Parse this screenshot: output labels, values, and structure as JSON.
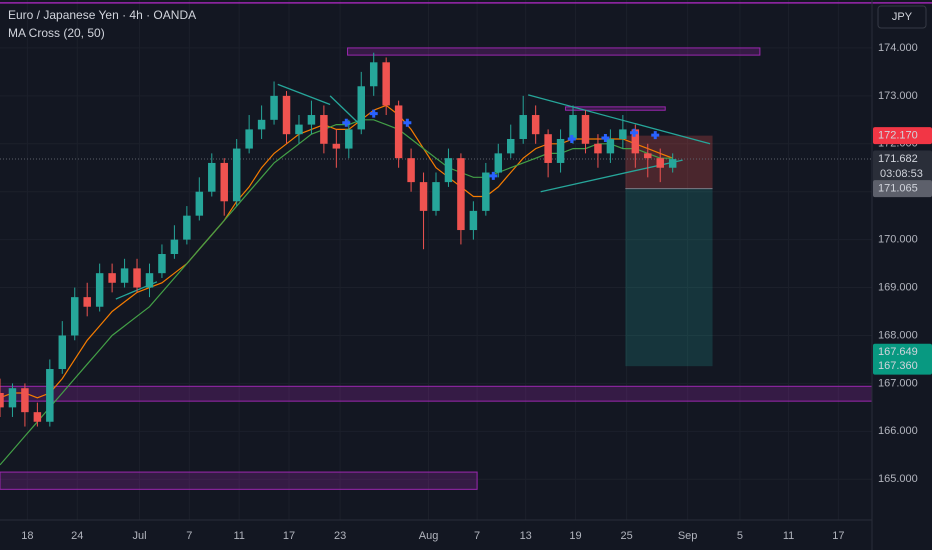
{
  "header": {
    "symbol_title": "Euro / Japanese Yen · 4h · OANDA",
    "indicator": "MA Cross (20, 50)",
    "currency_button": "JPY"
  },
  "chart_data": {
    "type": "candlestick",
    "colors": {
      "background": "#131722",
      "up": "#26a69a",
      "down": "#ef5350",
      "grid": "#1c202b",
      "zone": "#9c27b0",
      "trendline": "#26a69a",
      "cross": "#2962ff"
    },
    "xlim": [
      0,
      70
    ],
    "ylim": [
      164.15,
      175.0
    ],
    "xticks": [
      {
        "value": 2.2,
        "label": "18"
      },
      {
        "value": 6.2,
        "label": "24"
      },
      {
        "value": 11.2,
        "label": "Jul"
      },
      {
        "value": 15.2,
        "label": "7"
      },
      {
        "value": 19.2,
        "label": "11"
      },
      {
        "value": 23.2,
        "label": "17"
      },
      {
        "value": 27.3,
        "label": "23"
      },
      {
        "value": 34.4,
        "label": "Aug"
      },
      {
        "value": 38.3,
        "label": "7"
      },
      {
        "value": 42.2,
        "label": "13"
      },
      {
        "value": 46.2,
        "label": "19"
      },
      {
        "value": 50.3,
        "label": "25"
      },
      {
        "value": 55.2,
        "label": "Sep"
      },
      {
        "value": 59.4,
        "label": "5"
      },
      {
        "value": 63.3,
        "label": "11"
      },
      {
        "value": 67.3,
        "label": "17"
      }
    ],
    "yticks": [
      {
        "value": 165,
        "label": "165.000"
      },
      {
        "value": 166,
        "label": "166.000"
      },
      {
        "value": 167,
        "label": "167.000"
      },
      {
        "value": 168,
        "label": "168.000"
      },
      {
        "value": 169,
        "label": "169.000"
      },
      {
        "value": 170,
        "label": "170.000"
      },
      {
        "value": 171,
        "label": "171.000"
      },
      {
        "value": 172,
        "label": "172.000"
      },
      {
        "value": 173,
        "label": "173.000"
      },
      {
        "value": 174,
        "label": "174.000"
      }
    ],
    "grid": true,
    "x": [
      0,
      1,
      2,
      3,
      4,
      5,
      6,
      7,
      8,
      9,
      10,
      11,
      12,
      13,
      14,
      15,
      16,
      17,
      18,
      19,
      20,
      21,
      22,
      23,
      24,
      25,
      26,
      27,
      28,
      29,
      30,
      31,
      32,
      33,
      34,
      35,
      36,
      37,
      38,
      39,
      40,
      41,
      42,
      43,
      44,
      45,
      46,
      47,
      48,
      49,
      50,
      51,
      52,
      53,
      54
    ],
    "open": [
      166.8,
      166.5,
      166.9,
      166.4,
      166.2,
      167.3,
      168.0,
      168.8,
      168.6,
      169.3,
      169.1,
      169.4,
      169.0,
      169.3,
      169.7,
      170.0,
      170.5,
      171.0,
      171.6,
      170.8,
      171.9,
      172.3,
      172.5,
      173.0,
      172.2,
      172.4,
      172.6,
      172.0,
      171.9,
      172.3,
      173.2,
      173.7,
      172.8,
      171.7,
      171.2,
      170.6,
      171.2,
      171.7,
      170.2,
      170.6,
      171.4,
      171.8,
      172.1,
      172.6,
      172.2,
      171.6,
      172.1,
      172.6,
      172.0,
      171.8,
      172.1,
      172.3,
      171.8,
      171.7,
      171.5
    ],
    "high": [
      167.1,
      167.0,
      167.0,
      166.6,
      167.5,
      168.3,
      169.0,
      169.1,
      169.5,
      169.5,
      169.6,
      169.6,
      169.5,
      169.9,
      170.3,
      170.7,
      171.3,
      171.8,
      171.7,
      172.1,
      172.6,
      172.8,
      173.3,
      173.1,
      172.6,
      172.9,
      172.8,
      172.3,
      172.5,
      173.5,
      173.9,
      173.8,
      172.9,
      171.9,
      171.4,
      171.4,
      171.9,
      171.8,
      170.8,
      171.6,
      172.0,
      172.4,
      173.0,
      172.8,
      172.3,
      172.3,
      172.8,
      172.7,
      172.2,
      172.3,
      172.6,
      172.4,
      172.0,
      171.9,
      171.8
    ],
    "low": [
      166.3,
      166.3,
      166.1,
      166.1,
      166.1,
      167.2,
      167.9,
      168.4,
      168.5,
      168.9,
      169.0,
      168.9,
      168.8,
      169.2,
      169.6,
      169.9,
      170.4,
      170.9,
      170.5,
      170.7,
      171.8,
      172.1,
      172.4,
      172.0,
      172.0,
      172.2,
      171.8,
      171.5,
      171.7,
      172.2,
      173.0,
      172.6,
      171.5,
      171.0,
      169.8,
      170.5,
      171.1,
      169.9,
      170.0,
      170.5,
      171.3,
      171.7,
      172.0,
      172.0,
      171.3,
      171.4,
      172.0,
      171.8,
      171.5,
      171.6,
      171.9,
      171.5,
      171.3,
      171.2,
      171.4
    ],
    "close": [
      166.5,
      166.9,
      166.4,
      166.2,
      167.3,
      168.0,
      168.8,
      168.6,
      169.3,
      169.1,
      169.4,
      169.0,
      169.3,
      169.7,
      170.0,
      170.5,
      171.0,
      171.6,
      170.8,
      171.9,
      172.3,
      172.5,
      173.0,
      172.2,
      172.4,
      172.6,
      172.0,
      171.9,
      172.3,
      173.2,
      173.7,
      172.8,
      171.7,
      171.2,
      170.6,
      171.2,
      171.7,
      170.2,
      170.6,
      171.4,
      171.8,
      172.1,
      172.6,
      172.2,
      171.6,
      172.1,
      172.6,
      172.0,
      171.8,
      172.1,
      172.3,
      171.8,
      171.7,
      171.5,
      171.68
    ],
    "series": [
      {
        "color": "#f57c00",
        "values": [
          166.7,
          166.8,
          166.8,
          166.7,
          166.8,
          167.1,
          167.5,
          167.9,
          168.2,
          168.5,
          168.7,
          168.9,
          169.0,
          169.1,
          169.3,
          169.5,
          169.8,
          170.1,
          170.4,
          170.8,
          171.1,
          171.5,
          171.8,
          172.0,
          172.2,
          172.3,
          172.4,
          172.3,
          172.3,
          172.5,
          172.7,
          172.8,
          172.6,
          172.3,
          171.9,
          171.5,
          171.3,
          171.1,
          170.9,
          170.9,
          171.1,
          171.4,
          171.7,
          171.9,
          172.0,
          172.0,
          172.1,
          172.1,
          172.1,
          172.1,
          172.1,
          172.0,
          171.9,
          171.8,
          171.7
        ]
      },
      {
        "color": "#43a047",
        "values": [
          165.3,
          165.6,
          165.9,
          166.2,
          166.5,
          166.8,
          167.1,
          167.4,
          167.7,
          168.0,
          168.2,
          168.4,
          168.6,
          168.9,
          169.2,
          169.5,
          169.8,
          170.1,
          170.4,
          170.7,
          171.0,
          171.3,
          171.6,
          171.8,
          172.0,
          172.2,
          172.3,
          172.4,
          172.4,
          172.5,
          172.5,
          172.4,
          172.3,
          172.1,
          171.9,
          171.7,
          171.5,
          171.4,
          171.3,
          171.3,
          171.4,
          171.5,
          171.6,
          171.7,
          171.8,
          171.8,
          171.9,
          171.9,
          172.0,
          172.0,
          171.9,
          171.9,
          171.8,
          171.7,
          171.7
        ]
      }
    ],
    "crosses": {
      "x": [
        27.8,
        30.0,
        32.7,
        39.6,
        45.9,
        48.6,
        50.9,
        52.6
      ],
      "y": [
        172.44,
        172.63,
        172.44,
        171.33,
        172.1,
        172.12,
        172.23,
        172.18
      ]
    },
    "zones": [
      {
        "x": [
          27.9,
          61.0
        ],
        "y": [
          173.85,
          174.0
        ]
      },
      {
        "x": [
          45.4,
          53.4
        ],
        "y": [
          172.7,
          172.77
        ]
      },
      {
        "x": [
          0,
          70
        ],
        "y": [
          166.63,
          166.94
        ]
      },
      {
        "x": [
          0,
          38.3
        ],
        "y": [
          164.79,
          165.15
        ]
      }
    ],
    "hlines": [
      174.94
    ],
    "trendlines": [
      {
        "x": [
          42.4,
          57.0
        ],
        "y": [
          173.02,
          172.0
        ]
      },
      {
        "x": [
          43.4,
          54.8
        ],
        "y": [
          171.0,
          171.66
        ]
      },
      {
        "x": [
          9.3,
          12.6
        ],
        "y": [
          168.76,
          169.12
        ]
      },
      {
        "x": [
          22.3,
          26.5
        ],
        "y": [
          173.24,
          172.82
        ]
      },
      {
        "x": [
          26.5,
          28.9
        ],
        "y": [
          173.0,
          172.4
        ]
      }
    ],
    "position": {
      "x": [
        50.2,
        57.2
      ],
      "entry": 171.065,
      "stop": 172.17,
      "target": 167.36
    },
    "current_price": 171.682,
    "price_tags": [
      {
        "value": 172.17,
        "label": "172.170",
        "color": "#f23645"
      },
      {
        "value": 171.682,
        "label": "171.682",
        "color": "#2a2e39"
      },
      {
        "value": 171.065,
        "label": "171.065",
        "color": "#5d606b"
      },
      {
        "value": 167.649,
        "label": "167.649",
        "color": "#089981"
      },
      {
        "value": 167.36,
        "label": "167.360",
        "color": "#089981"
      }
    ],
    "countdown": "03:08:53"
  }
}
